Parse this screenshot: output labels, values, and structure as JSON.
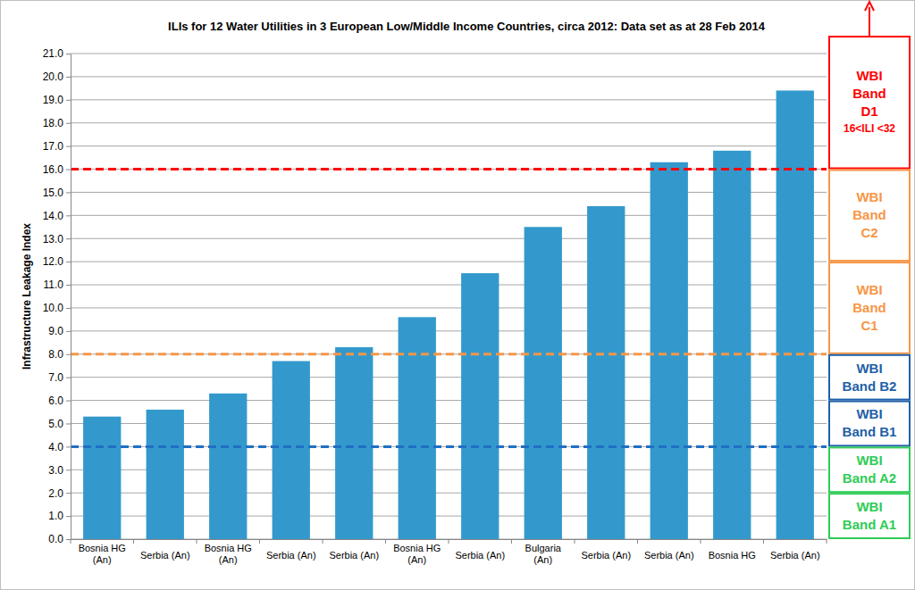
{
  "chart_data": {
    "type": "bar",
    "title": "ILIs for 12 Water Utilities in 3 European Low/Middle Income Countries, circa 2012: Data set as at 28 Feb 2014",
    "y_label": "Infrastructure Leakage Index",
    "categories": [
      "Bosnia HG (An)",
      "Serbia (An)",
      "Bosnia HG (An)",
      "Serbia (An)",
      "Serbia (An)",
      "Bosnia HG (An)",
      "Serbia (An)",
      "Bulgaria (An)",
      "Serbia (An)",
      "Serbia (An)",
      "Bosnia HG",
      "Serbia (An)"
    ],
    "values": [
      5.3,
      5.6,
      6.3,
      7.7,
      8.3,
      9.6,
      11.5,
      13.5,
      14.4,
      16.3,
      16.8,
      19.4
    ],
    "color": "#3399cc",
    "ylim": [
      0,
      21
    ],
    "yticks": [
      {
        "value": 0,
        "label": "0.0"
      },
      {
        "value": 1,
        "label": "1.0"
      },
      {
        "value": 2,
        "label": "2.0"
      },
      {
        "value": 3,
        "label": "3.0"
      },
      {
        "value": 4,
        "label": "4.0"
      },
      {
        "value": 5,
        "label": "5.0"
      },
      {
        "value": 6,
        "label": "6.0"
      },
      {
        "value": 7,
        "label": "7.0"
      },
      {
        "value": 8,
        "label": "8.0"
      },
      {
        "value": 9,
        "label": "9.0"
      },
      {
        "value": 10,
        "label": "10.0"
      },
      {
        "value": 11,
        "label": "11.0"
      },
      {
        "value": 12,
        "label": "12.0"
      },
      {
        "value": 13,
        "label": "13.0"
      },
      {
        "value": 14,
        "label": "14.0"
      },
      {
        "value": 15,
        "label": "15.0"
      },
      {
        "value": 16,
        "label": "16.0"
      },
      {
        "value": 17,
        "label": "17.0"
      },
      {
        "value": 18,
        "label": "18.0"
      },
      {
        "value": 19,
        "label": "19.0"
      },
      {
        "value": 20,
        "label": "20.0"
      },
      {
        "value": 21,
        "label": "21.0"
      }
    ],
    "grid": true,
    "thresholds": [
      {
        "value": 4,
        "color": "#1f6fc5"
      },
      {
        "value": 8,
        "color": "#f79646"
      },
      {
        "value": 16,
        "color": "#ff0000"
      }
    ],
    "bands": [
      {
        "lo": 16,
        "hi": 32,
        "color": "#ff0000",
        "lines": [
          "WBI",
          "Band",
          "D1"
        ],
        "note": "16<ILI <32"
      },
      {
        "lo": 12,
        "hi": 16,
        "color": "#f79646",
        "lines": [
          "WBI",
          "Band",
          "C2"
        ]
      },
      {
        "lo": 8,
        "hi": 12,
        "color": "#f79646",
        "lines": [
          "WBI",
          "Band",
          "C1"
        ]
      },
      {
        "lo": 6,
        "hi": 8,
        "color": "#1f5fa8",
        "lines": [
          "WBI",
          "Band B2"
        ]
      },
      {
        "lo": 4,
        "hi": 6,
        "color": "#1f5fa8",
        "lines": [
          "WBI",
          "Band B1"
        ]
      },
      {
        "lo": 2,
        "hi": 4,
        "color": "#2ecc55",
        "lines": [
          "WBI",
          "Band A2"
        ]
      },
      {
        "lo": 0,
        "hi": 2,
        "color": "#2ecc55",
        "lines": [
          "WBI",
          "Band A1"
        ]
      }
    ]
  }
}
